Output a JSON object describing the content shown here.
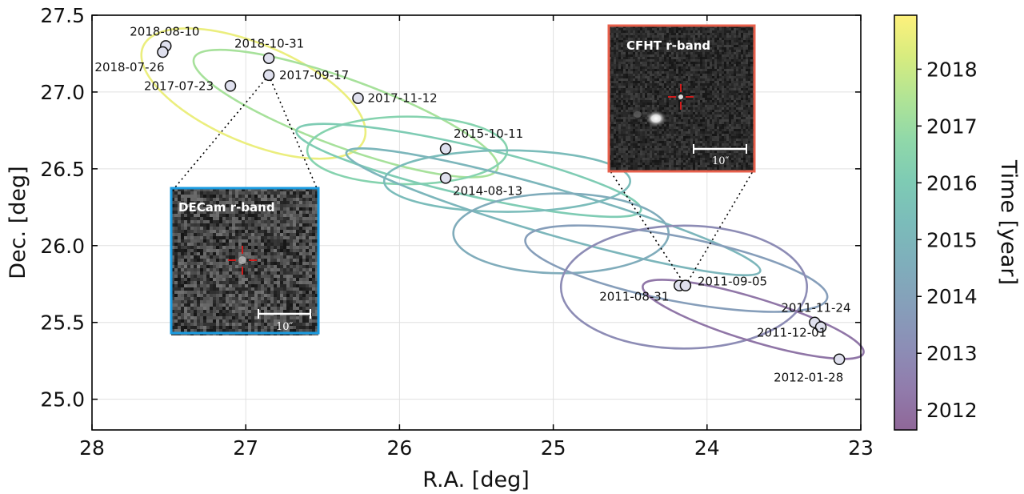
{
  "chart_data": {
    "type": "scatter",
    "xlabel": "R.A. [deg]",
    "ylabel": "Dec. [deg]",
    "xlim": [
      28,
      23
    ],
    "ylim": [
      24.8,
      27.5
    ],
    "x_inverted": true,
    "xticks": [
      "28",
      "27",
      "26",
      "25",
      "24",
      "23"
    ],
    "yticks": [
      "25.0",
      "25.5",
      "26.0",
      "26.5",
      "27.0",
      "27.5"
    ],
    "grid": true,
    "points": [
      {
        "label": "2018-08-10",
        "x": 27.52,
        "y": 27.3,
        "year": 2018.61
      },
      {
        "label": "2018-07-26",
        "x": 27.54,
        "y": 27.26,
        "year": 2018.57
      },
      {
        "label": "2018-10-31",
        "x": 26.85,
        "y": 27.22,
        "year": 2018.83
      },
      {
        "label": "2017-09-17",
        "x": 26.85,
        "y": 27.11,
        "year": 2017.71
      },
      {
        "label": "2017-07-23",
        "x": 27.1,
        "y": 27.04,
        "year": 2017.56
      },
      {
        "label": "2017-11-12",
        "x": 26.27,
        "y": 26.96,
        "year": 2017.86
      },
      {
        "label": "2015-10-11",
        "x": 25.7,
        "y": 26.63,
        "year": 2015.78
      },
      {
        "label": "2014-08-13",
        "x": 25.7,
        "y": 26.44,
        "year": 2014.61
      },
      {
        "label": "2011-08-31",
        "x": 24.18,
        "y": 25.74,
        "year": 2011.66
      },
      {
        "label": "2011-09-05",
        "x": 24.14,
        "y": 25.74,
        "year": 2011.68
      },
      {
        "label": "2011-11-24",
        "x": 23.3,
        "y": 25.5,
        "year": 2011.9
      },
      {
        "label": "2011-12-01",
        "x": 23.26,
        "y": 25.47,
        "year": 2011.92
      },
      {
        "label": "2012-01-28",
        "x": 23.14,
        "y": 25.26,
        "year": 2012.07
      }
    ],
    "ellipses": [
      {
        "year": 2018.6,
        "cx": 26.95,
        "cy": 26.99,
        "rx": 0.78,
        "ry": 0.32,
        "angle_deg": 23
      },
      {
        "year": 2017.3,
        "cx": 26.35,
        "cy": 26.86,
        "rx": 1.05,
        "ry": 0.22,
        "angle_deg": 20
      },
      {
        "year": 2016.5,
        "cx": 25.95,
        "cy": 26.62,
        "rx": 0.65,
        "ry": 0.22,
        "angle_deg": 0
      },
      {
        "year": 2016.1,
        "cx": 25.55,
        "cy": 26.49,
        "rx": 1.15,
        "ry": 0.16,
        "angle_deg": 13
      },
      {
        "year": 2015.3,
        "cx": 25.3,
        "cy": 26.42,
        "rx": 0.8,
        "ry": 0.2,
        "angle_deg": 0
      },
      {
        "year": 2015.0,
        "cx": 25.0,
        "cy": 26.22,
        "rx": 1.4,
        "ry": 0.15,
        "angle_deg": 16
      },
      {
        "year": 2014.5,
        "cx": 24.95,
        "cy": 26.08,
        "rx": 0.7,
        "ry": 0.26,
        "angle_deg": 0
      },
      {
        "year": 2013.8,
        "cx": 24.2,
        "cy": 25.85,
        "rx": 1.0,
        "ry": 0.21,
        "angle_deg": 11
      },
      {
        "year": 2013.0,
        "cx": 24.15,
        "cy": 25.73,
        "rx": 0.8,
        "ry": 0.4,
        "angle_deg": 0
      },
      {
        "year": 2012.2,
        "cx": 23.7,
        "cy": 25.52,
        "rx": 0.75,
        "ry": 0.14,
        "angle_deg": 17
      }
    ],
    "colorbar": {
      "label": "Time [year]",
      "ticks": [
        "2012",
        "2013",
        "2014",
        "2015",
        "2016",
        "2017",
        "2018"
      ],
      "range": [
        2011.65,
        2018.95
      ],
      "colormap": "viridis",
      "alpha": 0.6
    },
    "insets": [
      {
        "title": "DECam r-band",
        "scale_label": "10″",
        "border_color": "#1a9be0",
        "epoch": "2017-09-17"
      },
      {
        "title": "CFHT r-band",
        "scale_label": "10″",
        "border_color": "#e8604c",
        "epoch": "2011-09-05"
      }
    ]
  }
}
